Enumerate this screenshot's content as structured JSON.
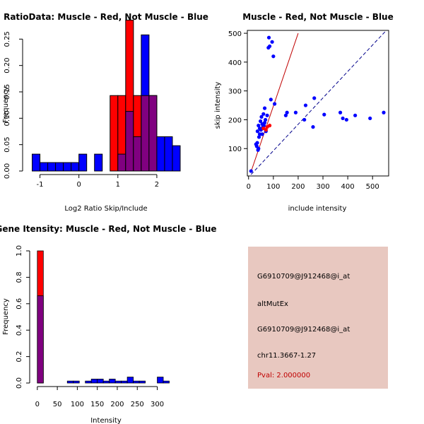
{
  "colors": {
    "red": "#ff0000",
    "blue": "#0000ff",
    "overlap": "#800080",
    "black": "#000000",
    "fit_red": "#c00000",
    "fit_blue": "#00008b",
    "panel_bg": "#e8c8c0"
  },
  "chart_data": [
    {
      "type": "bar",
      "title": "RatioData: Muscle - Red, Not Muscle - Blue",
      "xlabel": "Log2 Ratio Skip/Include",
      "ylabel": "Frequency",
      "xlim": [
        -1.3,
        2.6
      ],
      "ylim": [
        0,
        0.3
      ],
      "xticks": [
        "-1",
        "0",
        "1",
        "2"
      ],
      "yticks": [
        "0.00",
        "0.05",
        "0.10",
        "0.15",
        "0.20",
        "0.25"
      ],
      "bins": [
        {
          "x0": -1.2,
          "x1": -1.0,
          "red": 0,
          "blue": 0.032
        },
        {
          "x0": -1.0,
          "x1": -0.8,
          "red": 0,
          "blue": 0.016
        },
        {
          "x0": -0.8,
          "x1": -0.6,
          "red": 0,
          "blue": 0.016
        },
        {
          "x0": -0.6,
          "x1": -0.4,
          "red": 0,
          "blue": 0.016
        },
        {
          "x0": -0.4,
          "x1": -0.2,
          "red": 0,
          "blue": 0.016
        },
        {
          "x0": -0.2,
          "x1": 0.0,
          "red": 0,
          "blue": 0.016
        },
        {
          "x0": 0.0,
          "x1": 0.2,
          "red": 0,
          "blue": 0.032
        },
        {
          "x0": 0.4,
          "x1": 0.6,
          "red": 0,
          "blue": 0.032
        },
        {
          "x0": 0.8,
          "x1": 1.0,
          "red": 0.143,
          "blue": 0
        },
        {
          "x0": 1.0,
          "x1": 1.2,
          "red": 0.143,
          "blue": 0.032
        },
        {
          "x0": 1.2,
          "x1": 1.4,
          "red": 0.286,
          "blue": 0.113
        },
        {
          "x0": 1.4,
          "x1": 1.6,
          "red": 0.143,
          "blue": 0.065
        },
        {
          "x0": 1.6,
          "x1": 1.8,
          "red": 0.143,
          "blue": 0.258
        },
        {
          "x0": 1.8,
          "x1": 2.0,
          "red": 0.143,
          "blue": 0.143
        },
        {
          "x0": 2.0,
          "x1": 2.2,
          "red": 0,
          "blue": 0.065
        },
        {
          "x0": 2.2,
          "x1": 2.4,
          "red": 0,
          "blue": 0.065
        },
        {
          "x0": 2.4,
          "x1": 2.6,
          "red": 0,
          "blue": 0.048
        }
      ]
    },
    {
      "type": "scatter",
      "title": "Muscle - Red, Not Muscle - Blue",
      "xlabel": "include intensity",
      "ylabel": "skip intensity",
      "xlim": [
        -5,
        565
      ],
      "ylim": [
        5,
        510
      ],
      "xticks": [
        0,
        100,
        200,
        300,
        400,
        500
      ],
      "yticks": [
        100,
        200,
        300,
        400,
        500
      ],
      "blue_points": [
        [
          10,
          22
        ],
        [
          30,
          115
        ],
        [
          33,
          108
        ],
        [
          35,
          120
        ],
        [
          38,
          95
        ],
        [
          40,
          100
        ],
        [
          42,
          140
        ],
        [
          45,
          150
        ],
        [
          36,
          160
        ],
        [
          40,
          180
        ],
        [
          48,
          195
        ],
        [
          45,
          170
        ],
        [
          50,
          165
        ],
        [
          52,
          210
        ],
        [
          55,
          150
        ],
        [
          58,
          175
        ],
        [
          60,
          220
        ],
        [
          62,
          180
        ],
        [
          65,
          190
        ],
        [
          68,
          200
        ],
        [
          70,
          160
        ],
        [
          55,
          185
        ],
        [
          65,
          240
        ],
        [
          75,
          215
        ],
        [
          80,
          450
        ],
        [
          82,
          485
        ],
        [
          85,
          455
        ],
        [
          95,
          470
        ],
        [
          100,
          420
        ],
        [
          90,
          270
        ],
        [
          105,
          255
        ],
        [
          150,
          215
        ],
        [
          155,
          225
        ],
        [
          190,
          225
        ],
        [
          225,
          200
        ],
        [
          230,
          250
        ],
        [
          260,
          175
        ],
        [
          265,
          275
        ],
        [
          305,
          218
        ],
        [
          370,
          225
        ],
        [
          380,
          205
        ],
        [
          395,
          200
        ],
        [
          430,
          215
        ],
        [
          490,
          205
        ],
        [
          545,
          225
        ]
      ],
      "red_points": [
        [
          60,
          170
        ],
        [
          70,
          165
        ],
        [
          75,
          175
        ],
        [
          85,
          180
        ]
      ],
      "fit_red": [
        [
          10,
          20
        ],
        [
          200,
          500
        ]
      ],
      "fit_blue": [
        [
          10,
          10
        ],
        [
          550,
          505
        ]
      ]
    },
    {
      "type": "bar",
      "title": "Gene Itensity: Muscle - Red, Not Muscle - Blue",
      "xlabel": "Intensity",
      "ylabel": "Frequency",
      "xlim": [
        -5,
        345
      ],
      "ylim": [
        0,
        1.0
      ],
      "xticks": [
        0,
        50,
        100,
        150,
        200,
        250,
        300
      ],
      "yticks": [
        "0.0",
        "0.2",
        "0.4",
        "0.6",
        "0.8",
        "1.0"
      ],
      "bins": [
        {
          "x0": 0,
          "x1": 15,
          "red": 1.0,
          "blue": 0.66
        },
        {
          "x0": 75,
          "x1": 90,
          "red": 0,
          "blue": 0.015
        },
        {
          "x0": 90,
          "x1": 105,
          "red": 0,
          "blue": 0.015
        },
        {
          "x0": 120,
          "x1": 135,
          "red": 0,
          "blue": 0.015
        },
        {
          "x0": 135,
          "x1": 150,
          "red": 0,
          "blue": 0.03
        },
        {
          "x0": 150,
          "x1": 165,
          "red": 0,
          "blue": 0.03
        },
        {
          "x0": 165,
          "x1": 180,
          "red": 0,
          "blue": 0.015
        },
        {
          "x0": 180,
          "x1": 195,
          "red": 0,
          "blue": 0.03
        },
        {
          "x0": 195,
          "x1": 210,
          "red": 0,
          "blue": 0.015
        },
        {
          "x0": 210,
          "x1": 225,
          "red": 0,
          "blue": 0.015
        },
        {
          "x0": 225,
          "x1": 240,
          "red": 0,
          "blue": 0.045
        },
        {
          "x0": 240,
          "x1": 255,
          "red": 0,
          "blue": 0.015
        },
        {
          "x0": 255,
          "x1": 270,
          "red": 0,
          "blue": 0.015
        },
        {
          "x0": 300,
          "x1": 315,
          "red": 0,
          "blue": 0.045
        },
        {
          "x0": 315,
          "x1": 330,
          "red": 0,
          "blue": 0.015
        }
      ]
    }
  ],
  "info_panel": {
    "probe_id": "G6910709@J912468@i_at",
    "event_type": "altMutEx",
    "probe_id_2": "G6910709@J912468@i_at",
    "location": "chr11.3667-1.27",
    "pval": "Pval: 2.000000"
  }
}
